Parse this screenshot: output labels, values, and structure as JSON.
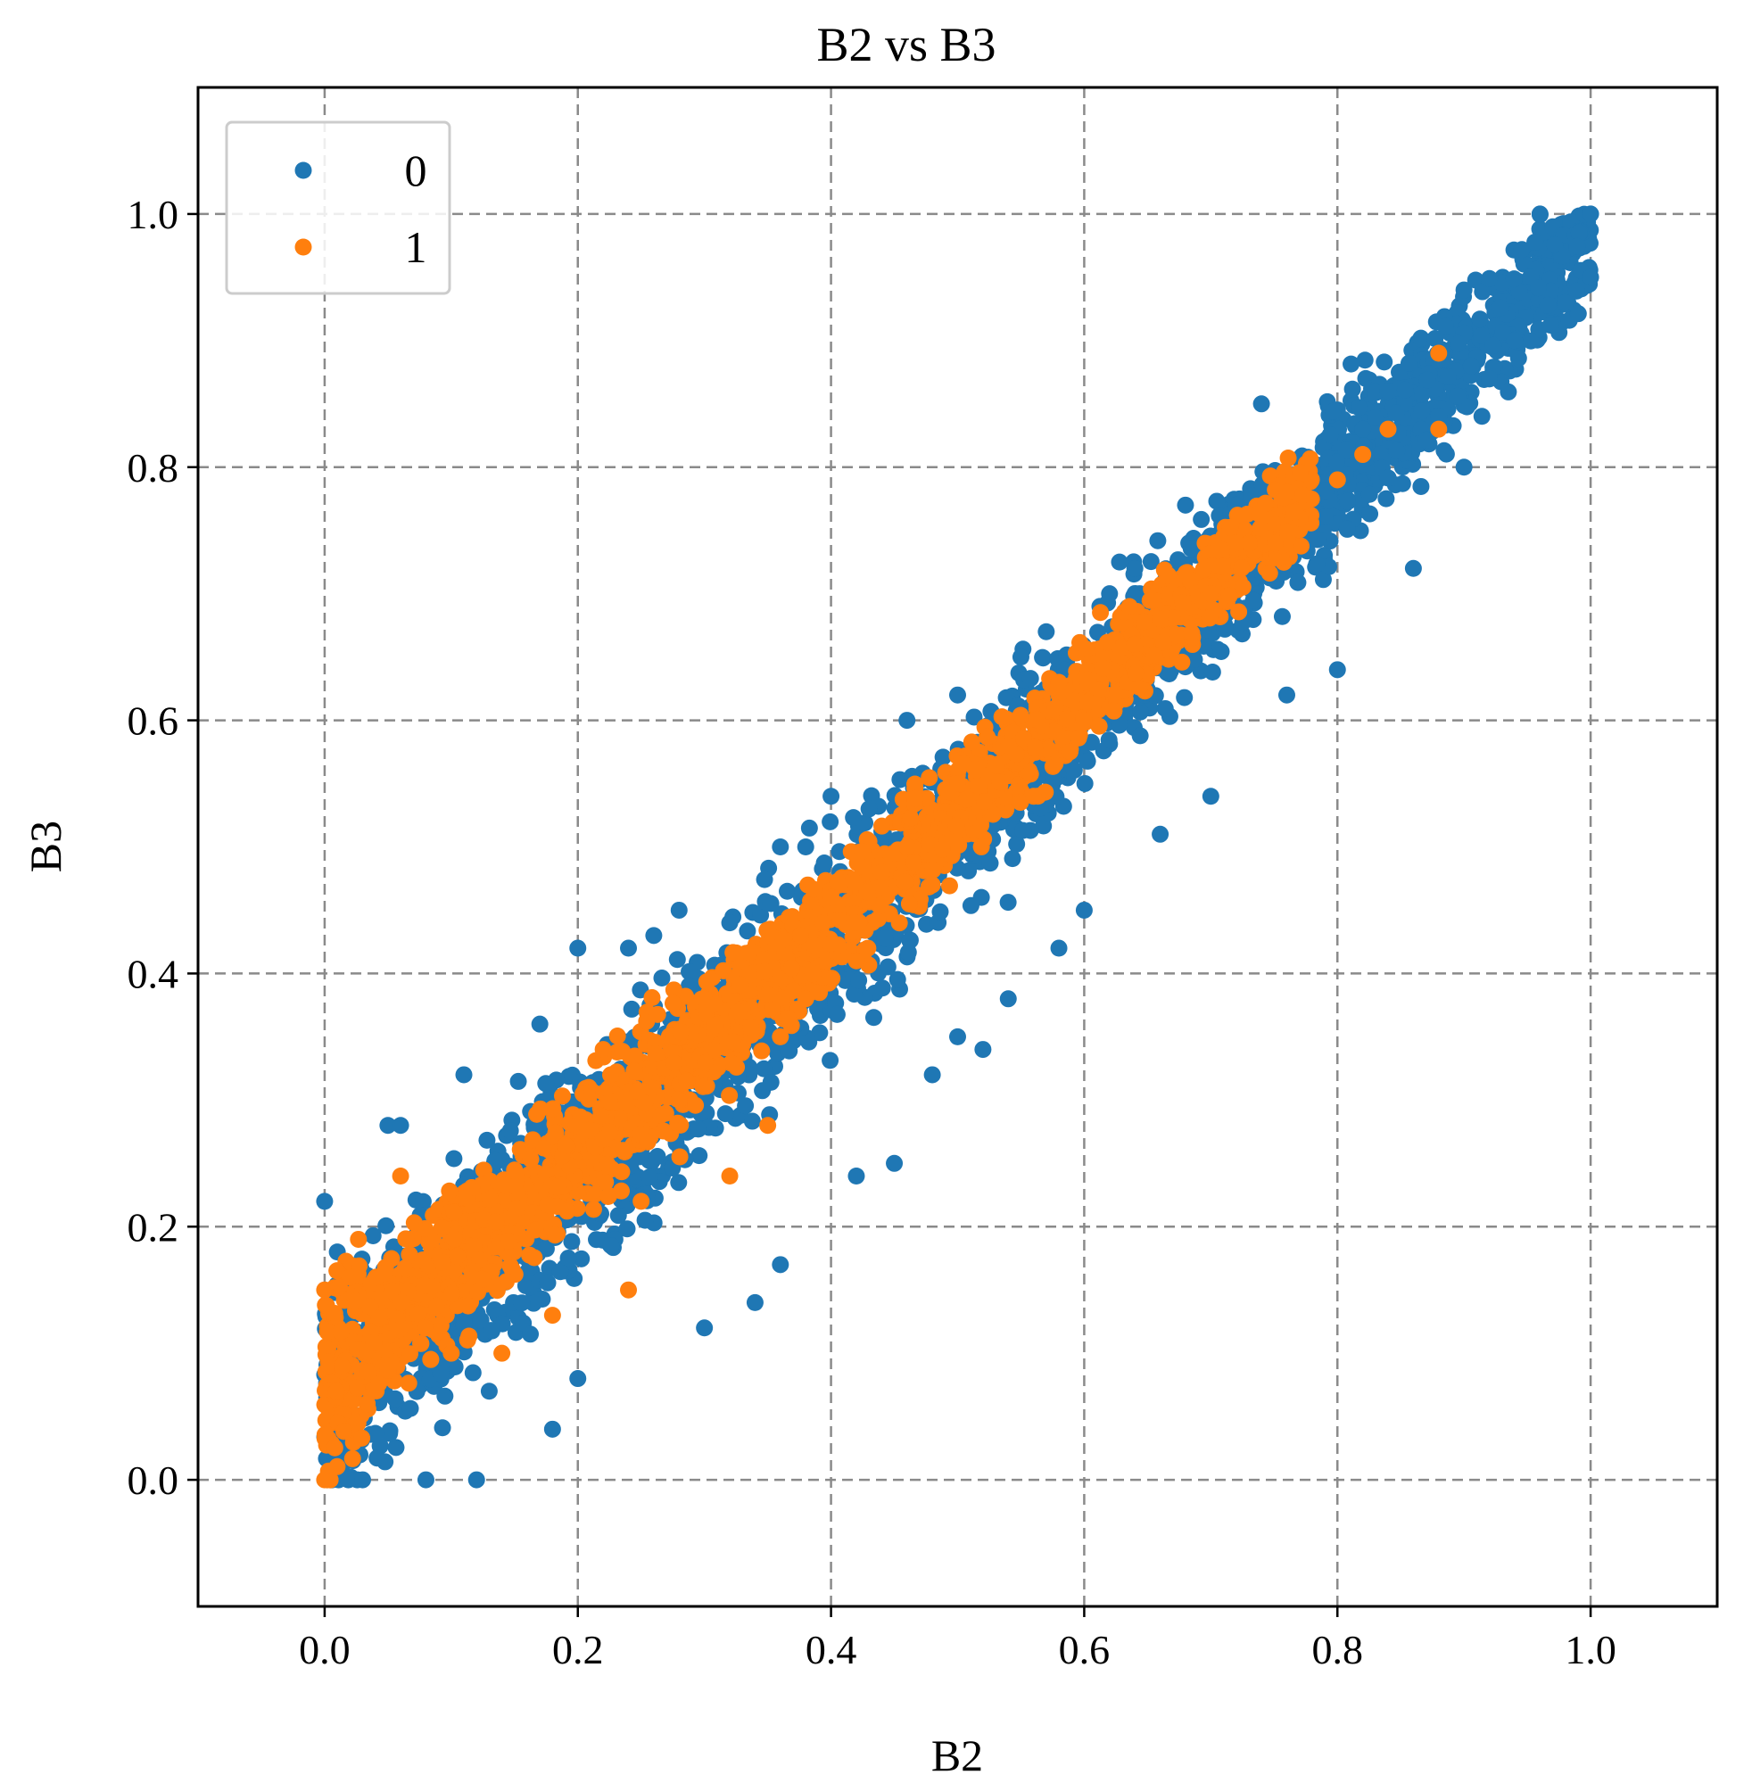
{
  "chart_data": {
    "type": "scatter",
    "title": "B2 vs B3",
    "xlabel": "B2",
    "ylabel": "B3",
    "xlim": [
      -0.1,
      1.1
    ],
    "ylim": [
      -0.1,
      1.1
    ],
    "xticks": [
      "0.0",
      "0.2",
      "0.4",
      "0.6",
      "0.8",
      "1.0"
    ],
    "yticks": [
      "0.0",
      "0.2",
      "0.4",
      "0.6",
      "0.8",
      "1.0"
    ],
    "grid": true,
    "legend_position": "top-left",
    "series": [
      {
        "name": "0",
        "color": "#1f77b4",
        "points": [
          [
            0.0,
            0.22
          ],
          [
            0.01,
            0.18
          ],
          [
            0.02,
            0.02
          ],
          [
            0.03,
            0.0
          ],
          [
            0.05,
            0.28
          ],
          [
            0.06,
            0.28
          ],
          [
            0.08,
            0.0
          ],
          [
            0.11,
            0.32
          ],
          [
            0.12,
            0.0
          ],
          [
            0.13,
            0.07
          ],
          [
            0.17,
            0.36
          ],
          [
            0.18,
            0.04
          ],
          [
            0.2,
            0.42
          ],
          [
            0.2,
            0.08
          ],
          [
            0.24,
            0.42
          ],
          [
            0.26,
            0.43
          ],
          [
            0.28,
            0.45
          ],
          [
            0.3,
            0.12
          ],
          [
            0.32,
            0.44
          ],
          [
            0.34,
            0.14
          ],
          [
            0.36,
            0.17
          ],
          [
            0.36,
            0.5
          ],
          [
            0.38,
            0.5
          ],
          [
            0.4,
            0.54
          ],
          [
            0.42,
            0.24
          ],
          [
            0.43,
            0.53
          ],
          [
            0.45,
            0.25
          ],
          [
            0.46,
            0.6
          ],
          [
            0.48,
            0.32
          ],
          [
            0.5,
            0.62
          ],
          [
            0.5,
            0.35
          ],
          [
            0.52,
            0.34
          ],
          [
            0.54,
            0.38
          ],
          [
            0.55,
            0.65
          ],
          [
            0.57,
            0.67
          ],
          [
            0.58,
            0.42
          ],
          [
            0.6,
            0.45
          ],
          [
            0.62,
            0.7
          ],
          [
            0.64,
            0.72
          ],
          [
            0.66,
            0.51
          ],
          [
            0.68,
            0.77
          ],
          [
            0.7,
            0.54
          ],
          [
            0.72,
            0.77
          ],
          [
            0.74,
            0.85
          ],
          [
            0.76,
            0.62
          ],
          [
            0.78,
            0.8
          ],
          [
            0.8,
            0.64
          ],
          [
            0.82,
            0.83
          ],
          [
            0.84,
            0.86
          ],
          [
            0.86,
            0.72
          ],
          [
            0.88,
            0.84
          ],
          [
            0.9,
            0.8
          ],
          [
            0.9,
            0.94
          ],
          [
            0.92,
            0.87
          ],
          [
            0.94,
            0.9
          ],
          [
            0.96,
            1.0
          ],
          [
            0.98,
            0.93
          ],
          [
            1.0,
            1.0
          ],
          [
            1.0,
            0.95
          ]
        ]
      },
      {
        "name": "1",
        "color": "#ff7f0e",
        "points": [
          [
            0.0,
            0.0
          ],
          [
            0.0,
            0.15
          ],
          [
            0.02,
            0.16
          ],
          [
            0.06,
            0.24
          ],
          [
            0.08,
            0.12
          ],
          [
            0.1,
            0.1
          ],
          [
            0.14,
            0.1
          ],
          [
            0.18,
            0.13
          ],
          [
            0.2,
            0.28
          ],
          [
            0.22,
            0.34
          ],
          [
            0.24,
            0.15
          ],
          [
            0.25,
            0.22
          ],
          [
            0.28,
            0.3
          ],
          [
            0.3,
            0.38
          ],
          [
            0.32,
            0.24
          ],
          [
            0.35,
            0.28
          ],
          [
            0.36,
            0.35
          ],
          [
            0.38,
            0.38
          ],
          [
            0.4,
            0.46
          ],
          [
            0.42,
            0.41
          ],
          [
            0.44,
            0.48
          ],
          [
            0.46,
            0.5
          ],
          [
            0.48,
            0.47
          ],
          [
            0.5,
            0.55
          ],
          [
            0.54,
            0.58
          ],
          [
            0.56,
            0.54
          ],
          [
            0.58,
            0.63
          ],
          [
            0.6,
            0.6
          ],
          [
            0.64,
            0.66
          ],
          [
            0.66,
            0.68
          ],
          [
            0.7,
            0.7
          ],
          [
            0.72,
            0.74
          ],
          [
            0.76,
            0.78
          ],
          [
            0.8,
            0.79
          ],
          [
            0.82,
            0.81
          ],
          [
            0.84,
            0.83
          ],
          [
            0.88,
            0.83
          ],
          [
            0.88,
            0.89
          ]
        ]
      }
    ]
  }
}
